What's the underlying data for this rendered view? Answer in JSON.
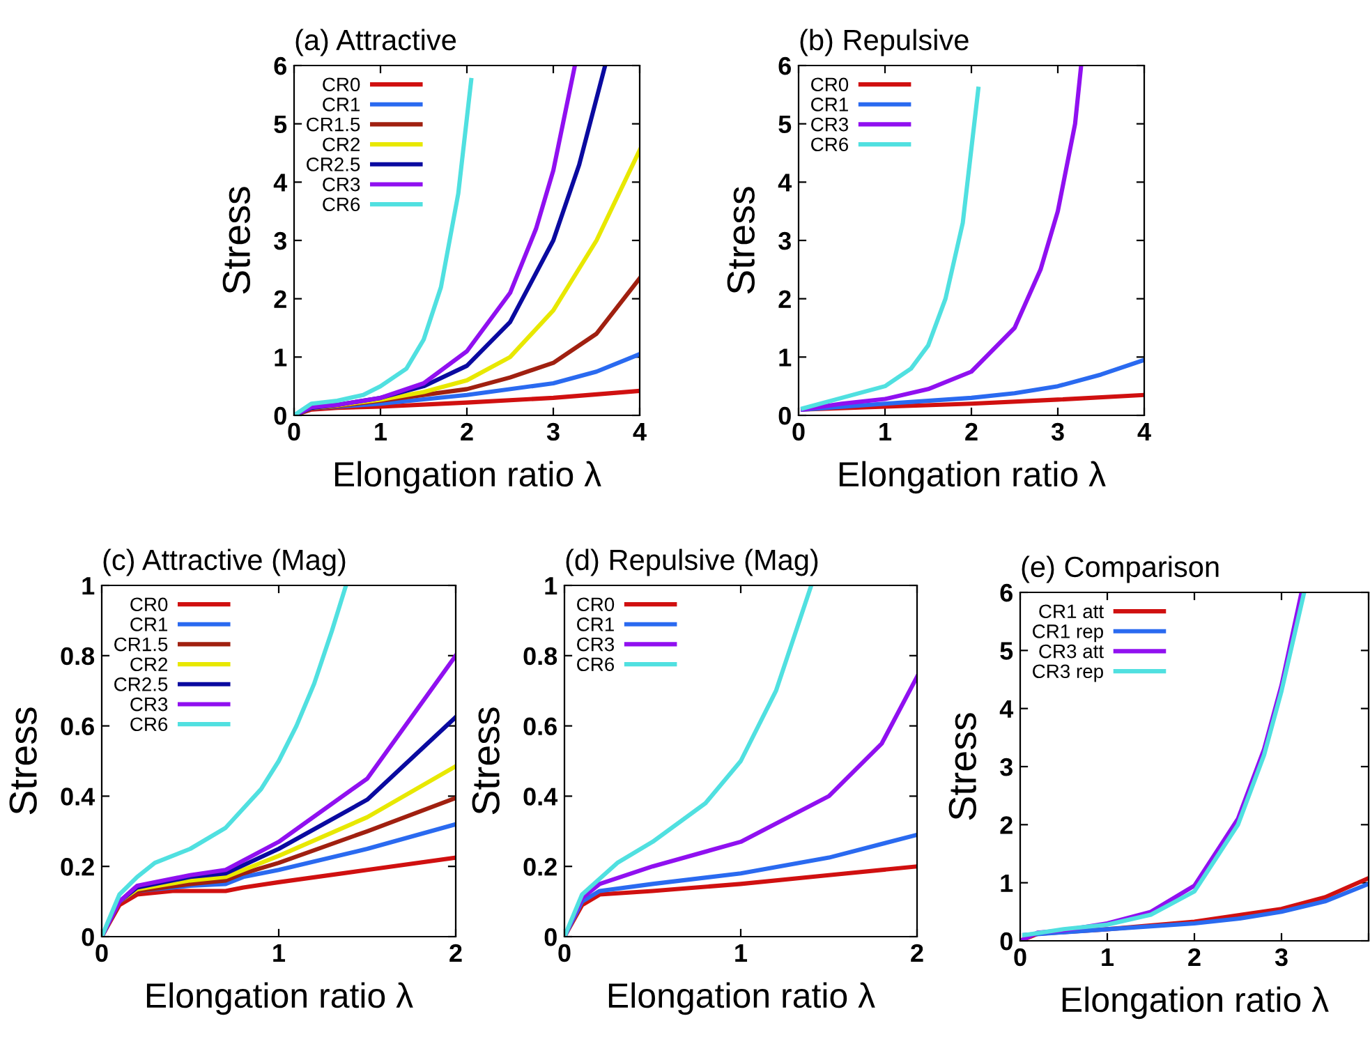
{
  "chart_data": [
    {
      "type": "line",
      "title": "(a) Attractive",
      "xlabel": "Elongation ratio λ",
      "ylabel": "Stress",
      "xlim": [
        0,
        4
      ],
      "ylim": [
        0,
        6
      ],
      "xticks": [
        0,
        1,
        2,
        3,
        4
      ],
      "yticks": [
        0,
        1,
        2,
        3,
        4,
        5,
        6
      ],
      "legend": "top left",
      "grid": false,
      "series": [
        {
          "name": "CR0",
          "color": "#d01010",
          "x": [
            0,
            0.2,
            0.5,
            1,
            2,
            3,
            3.5,
            4
          ],
          "values": [
            0,
            0.1,
            0.13,
            0.15,
            0.22,
            0.3,
            0.36,
            0.42
          ]
        },
        {
          "name": "CR1",
          "color": "#2a6af0",
          "x": [
            0,
            0.2,
            0.5,
            1,
            2,
            3,
            3.5,
            4
          ],
          "values": [
            0,
            0.12,
            0.15,
            0.2,
            0.35,
            0.55,
            0.75,
            1.05
          ]
        },
        {
          "name": "CR1.5",
          "color": "#a02010",
          "x": [
            0,
            0.2,
            0.5,
            1,
            2,
            2.5,
            3,
            3.5,
            4
          ],
          "values": [
            0,
            0.12,
            0.16,
            0.25,
            0.45,
            0.65,
            0.9,
            1.4,
            2.35
          ]
        },
        {
          "name": "CR2",
          "color": "#e8e800",
          "x": [
            0,
            0.2,
            0.5,
            1,
            1.5,
            2,
            2.5,
            3,
            3.5,
            4
          ],
          "values": [
            0,
            0.13,
            0.17,
            0.27,
            0.4,
            0.6,
            1.0,
            1.8,
            3.0,
            4.55
          ]
        },
        {
          "name": "CR2.5",
          "color": "#0a0aa0",
          "x": [
            0,
            0.2,
            0.5,
            1,
            1.5,
            2,
            2.5,
            3,
            3.3,
            3.6
          ],
          "values": [
            0,
            0.13,
            0.18,
            0.3,
            0.5,
            0.85,
            1.6,
            3.0,
            4.3,
            6.0
          ]
        },
        {
          "name": "CR3",
          "color": "#9010f0",
          "x": [
            0,
            0.2,
            0.5,
            1,
            1.5,
            2,
            2.5,
            2.8,
            3,
            3.25
          ],
          "values": [
            0,
            0.14,
            0.18,
            0.3,
            0.55,
            1.1,
            2.1,
            3.2,
            4.2,
            6.0
          ]
        },
        {
          "name": "CR6",
          "color": "#50e0e0",
          "x": [
            0,
            0.2,
            0.5,
            0.8,
            1,
            1.3,
            1.5,
            1.7,
            1.9,
            2.05
          ],
          "values": [
            0,
            0.2,
            0.25,
            0.35,
            0.5,
            0.8,
            1.3,
            2.2,
            3.8,
            5.75
          ]
        }
      ]
    },
    {
      "type": "line",
      "title": "(b) Repulsive",
      "xlabel": "Elongation ratio λ",
      "ylabel": "Stress",
      "xlim": [
        0,
        4
      ],
      "ylim": [
        0,
        6
      ],
      "xticks": [
        0,
        1,
        2,
        3,
        4
      ],
      "yticks": [
        0,
        1,
        2,
        3,
        4,
        5,
        6
      ],
      "legend": "top left",
      "grid": false,
      "series": [
        {
          "name": "CR0",
          "color": "#d01010",
          "x": [
            0.05,
            1,
            2,
            3,
            4
          ],
          "values": [
            0.1,
            0.15,
            0.2,
            0.27,
            0.35
          ]
        },
        {
          "name": "CR1",
          "color": "#2a6af0",
          "x": [
            0.05,
            1,
            2,
            2.5,
            3,
            3.5,
            4
          ],
          "values": [
            0.1,
            0.2,
            0.3,
            0.38,
            0.5,
            0.7,
            0.95
          ]
        },
        {
          "name": "CR3",
          "color": "#9010f0",
          "x": [
            0.05,
            0.5,
            1,
            1.5,
            2,
            2.5,
            2.8,
            3,
            3.2,
            3.27
          ],
          "values": [
            0.1,
            0.2,
            0.28,
            0.45,
            0.75,
            1.5,
            2.5,
            3.5,
            5.0,
            6.0
          ]
        },
        {
          "name": "CR6",
          "color": "#50e0e0",
          "x": [
            0.05,
            0.5,
            1,
            1.3,
            1.5,
            1.7,
            1.9,
            2.08
          ],
          "values": [
            0.12,
            0.3,
            0.5,
            0.8,
            1.2,
            2.0,
            3.3,
            5.6
          ]
        }
      ]
    },
    {
      "type": "line",
      "title": "(c) Attractive (Mag)",
      "xlabel": "Elongation ratio λ",
      "ylabel": "Stress",
      "xlim": [
        0,
        2
      ],
      "ylim": [
        0,
        1
      ],
      "xticks": [
        0,
        1,
        2
      ],
      "yticks": [
        0,
        0.2,
        0.4,
        0.6,
        0.8,
        1
      ],
      "legend": "top left",
      "grid": false,
      "series": [
        {
          "name": "CR0",
          "color": "#d01010",
          "x": [
            0,
            0.1,
            0.2,
            0.4,
            0.7,
            0.8,
            1,
            1.5,
            2
          ],
          "values": [
            0,
            0.09,
            0.12,
            0.13,
            0.13,
            0.14,
            0.155,
            0.19,
            0.225
          ]
        },
        {
          "name": "CR1",
          "color": "#2a6af0",
          "x": [
            0,
            0.1,
            0.2,
            0.5,
            0.7,
            0.8,
            1,
            1.5,
            2
          ],
          "values": [
            0,
            0.1,
            0.13,
            0.145,
            0.15,
            0.17,
            0.19,
            0.25,
            0.32
          ]
        },
        {
          "name": "CR1.5",
          "color": "#a02010",
          "x": [
            0,
            0.1,
            0.2,
            0.5,
            0.7,
            0.8,
            1,
            1.5,
            2
          ],
          "values": [
            0,
            0.1,
            0.13,
            0.15,
            0.16,
            0.18,
            0.21,
            0.3,
            0.395
          ]
        },
        {
          "name": "CR2",
          "color": "#e8e800",
          "x": [
            0,
            0.1,
            0.2,
            0.5,
            0.7,
            1,
            1.5,
            2
          ],
          "values": [
            0,
            0.1,
            0.135,
            0.16,
            0.17,
            0.23,
            0.34,
            0.485
          ]
        },
        {
          "name": "CR2.5",
          "color": "#0a0aa0",
          "x": [
            0,
            0.1,
            0.2,
            0.5,
            0.7,
            1,
            1.5,
            2
          ],
          "values": [
            0,
            0.1,
            0.14,
            0.17,
            0.18,
            0.25,
            0.39,
            0.625
          ]
        },
        {
          "name": "CR3",
          "color": "#9010f0",
          "x": [
            0,
            0.1,
            0.2,
            0.5,
            0.7,
            1,
            1.5,
            2
          ],
          "values": [
            0,
            0.1,
            0.145,
            0.175,
            0.19,
            0.27,
            0.45,
            0.8
          ]
        },
        {
          "name": "CR6",
          "color": "#50e0e0",
          "x": [
            0,
            0.1,
            0.2,
            0.3,
            0.5,
            0.7,
            0.9,
            1,
            1.1,
            1.2,
            1.3,
            1.38
          ],
          "values": [
            0,
            0.12,
            0.17,
            0.21,
            0.25,
            0.31,
            0.42,
            0.5,
            0.6,
            0.72,
            0.87,
            1.0
          ]
        }
      ]
    },
    {
      "type": "line",
      "title": "(d) Repulsive (Mag)",
      "xlabel": "Elongation ratio λ",
      "ylabel": "Stress",
      "xlim": [
        0,
        2
      ],
      "ylim": [
        0,
        1
      ],
      "xticks": [
        0,
        1,
        2
      ],
      "yticks": [
        0,
        0.2,
        0.4,
        0.6,
        0.8,
        1
      ],
      "legend": "top left",
      "grid": false,
      "series": [
        {
          "name": "CR0",
          "color": "#d01010",
          "x": [
            0,
            0.1,
            0.2,
            0.5,
            1,
            1.5,
            2
          ],
          "values": [
            0,
            0.09,
            0.12,
            0.13,
            0.15,
            0.175,
            0.2
          ]
        },
        {
          "name": "CR1",
          "color": "#2a6af0",
          "x": [
            0,
            0.1,
            0.2,
            0.5,
            1,
            1.5,
            2
          ],
          "values": [
            0,
            0.1,
            0.13,
            0.15,
            0.18,
            0.225,
            0.29
          ]
        },
        {
          "name": "CR3",
          "color": "#9010f0",
          "x": [
            0,
            0.1,
            0.2,
            0.5,
            1,
            1.5,
            1.8,
            2
          ],
          "values": [
            0,
            0.11,
            0.15,
            0.2,
            0.27,
            0.4,
            0.55,
            0.74
          ]
        },
        {
          "name": "CR6",
          "color": "#50e0e0",
          "x": [
            0,
            0.1,
            0.3,
            0.5,
            0.8,
            1,
            1.2,
            1.3,
            1.4
          ],
          "values": [
            0,
            0.12,
            0.21,
            0.27,
            0.38,
            0.5,
            0.7,
            0.85,
            1.0
          ]
        }
      ]
    },
    {
      "type": "line",
      "title": "(e) Comparison",
      "xlabel": "Elongation ratio λ",
      "ylabel": "Stress",
      "xlim": [
        0,
        4
      ],
      "ylim": [
        0,
        6
      ],
      "xticks": [
        0,
        1,
        2,
        3,
        {
          "value": 4,
          "label": null
        }
      ],
      "yticks": [
        0,
        1,
        2,
        3,
        4,
        5,
        6
      ],
      "legend": "top left",
      "grid": false,
      "series": [
        {
          "name": "CR1 att",
          "color": "#d01010",
          "x": [
            0,
            0.2,
            0.5,
            1,
            2,
            3,
            3.5,
            4
          ],
          "values": [
            0,
            0.12,
            0.15,
            0.2,
            0.33,
            0.55,
            0.75,
            1.08
          ]
        },
        {
          "name": "CR1 rep",
          "color": "#2a6af0",
          "x": [
            0.05,
            1,
            2,
            2.5,
            3,
            3.5,
            4
          ],
          "values": [
            0.1,
            0.2,
            0.3,
            0.38,
            0.5,
            0.68,
            0.98
          ]
        },
        {
          "name": "CR3 att",
          "color": "#9010f0",
          "x": [
            0,
            0.2,
            0.5,
            1,
            1.5,
            2,
            2.5,
            2.8,
            3,
            3.23
          ],
          "values": [
            0,
            0.14,
            0.18,
            0.3,
            0.5,
            0.95,
            2.1,
            3.3,
            4.4,
            6.0
          ]
        },
        {
          "name": "CR3 rep",
          "color": "#50e0e0",
          "x": [
            0.05,
            0.5,
            1,
            1.5,
            2,
            2.5,
            2.8,
            3,
            3.26
          ],
          "values": [
            0.1,
            0.2,
            0.28,
            0.45,
            0.85,
            2.0,
            3.2,
            4.3,
            6.0
          ]
        }
      ]
    }
  ]
}
